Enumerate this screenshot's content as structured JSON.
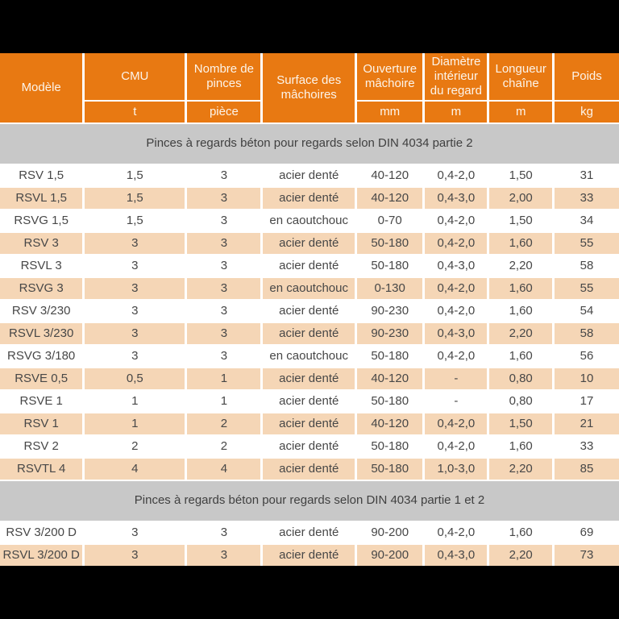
{
  "colors": {
    "page_bg": "#000000",
    "header_bg": "#e87912",
    "header_text": "#fcf4ea",
    "row_bg": "#ffffff",
    "row_alt_bg": "#f5d6b6",
    "section_bg": "#c8c8c8",
    "body_text": "#474747"
  },
  "table": {
    "columns": [
      {
        "label": "Modèle",
        "unit": "",
        "width": "13.7%"
      },
      {
        "label": "CMU",
        "unit": "t",
        "width": "16.6%"
      },
      {
        "label": "Nombre de pinces",
        "unit": "pièce",
        "width": "12.2%"
      },
      {
        "label": "Surface des mâchoires",
        "unit": "",
        "width": "15.2%"
      },
      {
        "label": "Ouverture mâchoire",
        "unit": "mm",
        "width": "10.9%"
      },
      {
        "label": "Diamètre intérieur du regard",
        "unit": "m",
        "width": "10.3%"
      },
      {
        "label": "Longueur chaîne",
        "unit": "m",
        "width": "10.4%"
      },
      {
        "label": "Poids",
        "unit": "kg",
        "width": "10.7%"
      }
    ],
    "sections": [
      {
        "title": "Pinces à regards béton pour regards selon DIN 4034 partie 2",
        "rows": [
          [
            "RSV 1,5",
            "1,5",
            "3",
            "acier denté",
            "40-120",
            "0,4-2,0",
            "1,50",
            "31"
          ],
          [
            "RSVL 1,5",
            "1,5",
            "3",
            "acier denté",
            "40-120",
            "0,4-3,0",
            "2,00",
            "33"
          ],
          [
            "RSVG 1,5",
            "1,5",
            "3",
            "en caoutchouc",
            "0-70",
            "0,4-2,0",
            "1,50",
            "34"
          ],
          [
            "RSV 3",
            "3",
            "3",
            "acier denté",
            "50-180",
            "0,4-2,0",
            "1,60",
            "55"
          ],
          [
            "RSVL 3",
            "3",
            "3",
            "acier denté",
            "50-180",
            "0,4-3,0",
            "2,20",
            "58"
          ],
          [
            "RSVG 3",
            "3",
            "3",
            "en caoutchouc",
            "0-130",
            "0,4-2,0",
            "1,60",
            "55"
          ],
          [
            "RSV 3/230",
            "3",
            "3",
            "acier denté",
            "90-230",
            "0,4-2,0",
            "1,60",
            "54"
          ],
          [
            "RSVL 3/230",
            "3",
            "3",
            "acier denté",
            "90-230",
            "0,4-3,0",
            "2,20",
            "58"
          ],
          [
            "RSVG 3/180",
            "3",
            "3",
            "en caoutchouc",
            "50-180",
            "0,4-2,0",
            "1,60",
            "56"
          ],
          [
            "RSVE 0,5",
            "0,5",
            "1",
            "acier denté",
            "40-120",
            "-",
            "0,80",
            "10"
          ],
          [
            "RSVE 1",
            "1",
            "1",
            "acier denté",
            "50-180",
            "-",
            "0,80",
            "17"
          ],
          [
            "RSV 1",
            "1",
            "2",
            "acier denté",
            "40-120",
            "0,4-2,0",
            "1,50",
            "21"
          ],
          [
            "RSV 2",
            "2",
            "2",
            "acier denté",
            "50-180",
            "0,4-2,0",
            "1,60",
            "33"
          ],
          [
            "RSVTL 4",
            "4",
            "4",
            "acier denté",
            "50-180",
            "1,0-3,0",
            "2,20",
            "85"
          ]
        ]
      },
      {
        "title": "Pinces à regards béton pour regards selon DIN 4034 partie 1 et 2",
        "rows": [
          [
            "RSV 3/200 D",
            "3",
            "3",
            "acier denté",
            "90-200",
            "0,4-2,0",
            "1,60",
            "69"
          ],
          [
            "RSVL 3/200 D",
            "3",
            "3",
            "acier denté",
            "90-200",
            "0,4-3,0",
            "2,20",
            "73"
          ]
        ]
      }
    ]
  }
}
